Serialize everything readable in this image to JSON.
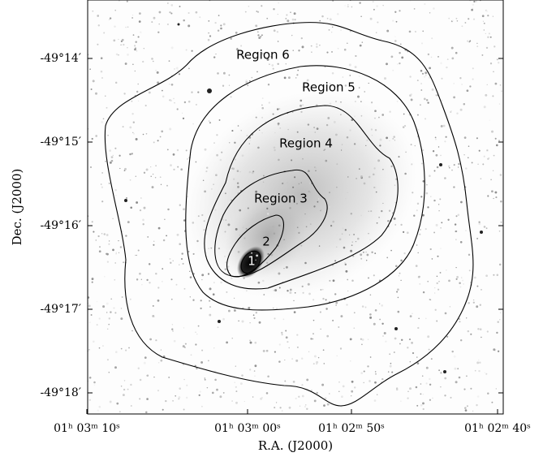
{
  "axes": {
    "xlabel": "R.A. (J2000)",
    "ylabel": "Dec. (J2000)",
    "xticks": [
      "01ʰ 03ᵐ 10ˢ",
      "01ʰ 03ᵐ 00ˢ",
      "01ʰ 02ᵐ 50ˢ",
      "01ʰ 02ᵐ 40ˢ"
    ],
    "yticks": [
      "-49°14′",
      "-49°15′",
      "-49°16′",
      "-49°17′",
      "-49°18′"
    ]
  },
  "regions": [
    "Region 6",
    "Region 5",
    "Region 4",
    "Region 3",
    "2",
    "1"
  ]
}
